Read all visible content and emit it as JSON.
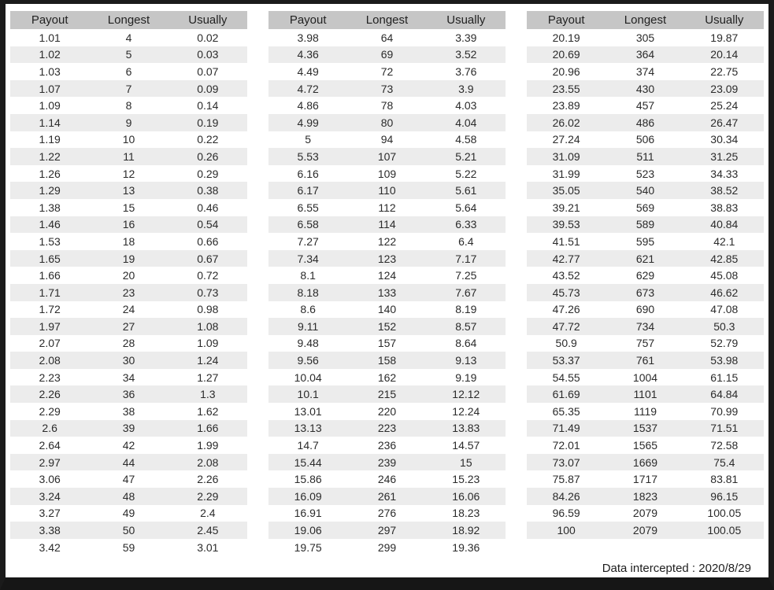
{
  "columns": [
    "Payout",
    "Longest",
    "Usually"
  ],
  "colors": {
    "header_bg": "#c6c6c6",
    "stripe_bg": "#ececec",
    "row_bg": "#ffffff",
    "frame": "#1b1b1b",
    "text": "#2b2b2b"
  },
  "tables": [
    {
      "rows": [
        [
          "1.01",
          "4",
          "0.02"
        ],
        [
          "1.02",
          "5",
          "0.03"
        ],
        [
          "1.03",
          "6",
          "0.07"
        ],
        [
          "1.07",
          "7",
          "0.09"
        ],
        [
          "1.09",
          "8",
          "0.14"
        ],
        [
          "1.14",
          "9",
          "0.19"
        ],
        [
          "1.19",
          "10",
          "0.22"
        ],
        [
          "1.22",
          "11",
          "0.26"
        ],
        [
          "1.26",
          "12",
          "0.29"
        ],
        [
          "1.29",
          "13",
          "0.38"
        ],
        [
          "1.38",
          "15",
          "0.46"
        ],
        [
          "1.46",
          "16",
          "0.54"
        ],
        [
          "1.53",
          "18",
          "0.66"
        ],
        [
          "1.65",
          "19",
          "0.67"
        ],
        [
          "1.66",
          "20",
          "0.72"
        ],
        [
          "1.71",
          "23",
          "0.73"
        ],
        [
          "1.72",
          "24",
          "0.98"
        ],
        [
          "1.97",
          "27",
          "1.08"
        ],
        [
          "2.07",
          "28",
          "1.09"
        ],
        [
          "2.08",
          "30",
          "1.24"
        ],
        [
          "2.23",
          "34",
          "1.27"
        ],
        [
          "2.26",
          "36",
          "1.3"
        ],
        [
          "2.29",
          "38",
          "1.62"
        ],
        [
          "2.6",
          "39",
          "1.66"
        ],
        [
          "2.64",
          "42",
          "1.99"
        ],
        [
          "2.97",
          "44",
          "2.08"
        ],
        [
          "3.06",
          "47",
          "2.26"
        ],
        [
          "3.24",
          "48",
          "2.29"
        ],
        [
          "3.27",
          "49",
          "2.4"
        ],
        [
          "3.38",
          "50",
          "2.45"
        ],
        [
          "3.42",
          "59",
          "3.01"
        ]
      ]
    },
    {
      "rows": [
        [
          "3.98",
          "64",
          "3.39"
        ],
        [
          "4.36",
          "69",
          "3.52"
        ],
        [
          "4.49",
          "72",
          "3.76"
        ],
        [
          "4.72",
          "73",
          "3.9"
        ],
        [
          "4.86",
          "78",
          "4.03"
        ],
        [
          "4.99",
          "80",
          "4.04"
        ],
        [
          "5",
          "94",
          "4.58"
        ],
        [
          "5.53",
          "107",
          "5.21"
        ],
        [
          "6.16",
          "109",
          "5.22"
        ],
        [
          "6.17",
          "110",
          "5.61"
        ],
        [
          "6.55",
          "112",
          "5.64"
        ],
        [
          "6.58",
          "114",
          "6.33"
        ],
        [
          "7.27",
          "122",
          "6.4"
        ],
        [
          "7.34",
          "123",
          "7.17"
        ],
        [
          "8.1",
          "124",
          "7.25"
        ],
        [
          "8.18",
          "133",
          "7.67"
        ],
        [
          "8.6",
          "140",
          "8.19"
        ],
        [
          "9.11",
          "152",
          "8.57"
        ],
        [
          "9.48",
          "157",
          "8.64"
        ],
        [
          "9.56",
          "158",
          "9.13"
        ],
        [
          "10.04",
          "162",
          "9.19"
        ],
        [
          "10.1",
          "215",
          "12.12"
        ],
        [
          "13.01",
          "220",
          "12.24"
        ],
        [
          "13.13",
          "223",
          "13.83"
        ],
        [
          "14.7",
          "236",
          "14.57"
        ],
        [
          "15.44",
          "239",
          "15"
        ],
        [
          "15.86",
          "246",
          "15.23"
        ],
        [
          "16.09",
          "261",
          "16.06"
        ],
        [
          "16.91",
          "276",
          "18.23"
        ],
        [
          "19.06",
          "297",
          "18.92"
        ],
        [
          "19.75",
          "299",
          "19.36"
        ]
      ]
    },
    {
      "rows": [
        [
          "20.19",
          "305",
          "19.87"
        ],
        [
          "20.69",
          "364",
          "20.14"
        ],
        [
          "20.96",
          "374",
          "22.75"
        ],
        [
          "23.55",
          "430",
          "23.09"
        ],
        [
          "23.89",
          "457",
          "25.24"
        ],
        [
          "26.02",
          "486",
          "26.47"
        ],
        [
          "27.24",
          "506",
          "30.34"
        ],
        [
          "31.09",
          "511",
          "31.25"
        ],
        [
          "31.99",
          "523",
          "34.33"
        ],
        [
          "35.05",
          "540",
          "38.52"
        ],
        [
          "39.21",
          "569",
          "38.83"
        ],
        [
          "39.53",
          "589",
          "40.84"
        ],
        [
          "41.51",
          "595",
          "42.1"
        ],
        [
          "42.77",
          "621",
          "42.85"
        ],
        [
          "43.52",
          "629",
          "45.08"
        ],
        [
          "45.73",
          "673",
          "46.62"
        ],
        [
          "47.26",
          "690",
          "47.08"
        ],
        [
          "47.72",
          "734",
          "50.3"
        ],
        [
          "50.9",
          "757",
          "52.79"
        ],
        [
          "53.37",
          "761",
          "53.98"
        ],
        [
          "54.55",
          "1004",
          "61.15"
        ],
        [
          "61.69",
          "1101",
          "64.84"
        ],
        [
          "65.35",
          "1119",
          "70.99"
        ],
        [
          "71.49",
          "1537",
          "71.51"
        ],
        [
          "72.01",
          "1565",
          "72.58"
        ],
        [
          "73.07",
          "1669",
          "75.4"
        ],
        [
          "75.87",
          "1717",
          "83.81"
        ],
        [
          "84.26",
          "1823",
          "96.15"
        ],
        [
          "96.59",
          "2079",
          "100.05"
        ],
        [
          "100",
          "2079",
          "100.05"
        ]
      ]
    }
  ],
  "footer": {
    "note": "Data intercepted : 2020/8/29"
  }
}
